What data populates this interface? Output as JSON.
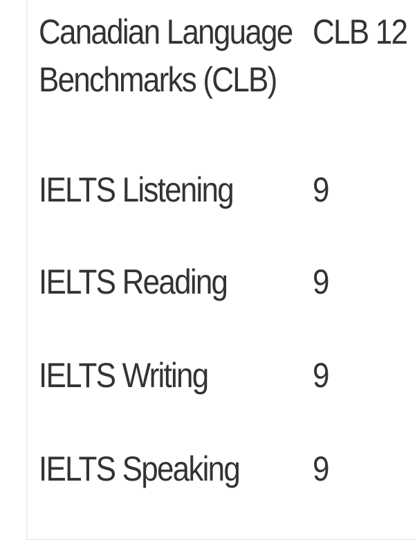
{
  "scores": [
    {
      "label_line1": "Canadian Language",
      "label_line2": "Benchmarks (CLB)",
      "value": "CLB 12"
    },
    {
      "label": "IELTS Listening",
      "value": "9"
    },
    {
      "label": "IELTS Reading",
      "value": "9"
    },
    {
      "label": "IELTS Writing",
      "value": "9"
    },
    {
      "label": "IELTS Speaking",
      "value": "9"
    }
  ]
}
